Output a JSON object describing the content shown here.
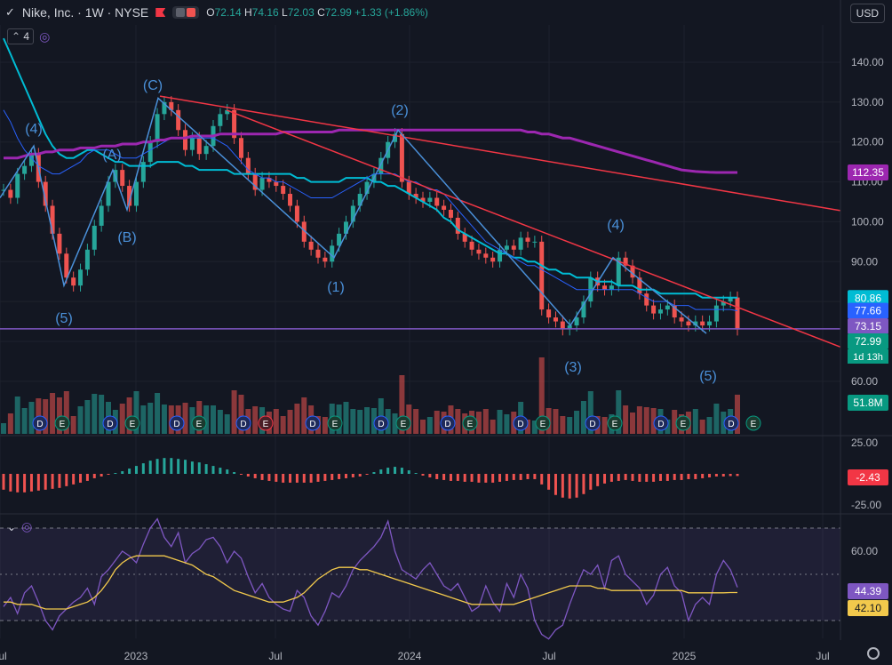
{
  "header": {
    "symbol": "Nike, Inc. · 1W · NYSE",
    "o_label": "O",
    "o": "72.14",
    "h_label": "H",
    "h": "74.16",
    "l_label": "L",
    "l": "72.03",
    "c_label": "C",
    "c": "72.99",
    "change": "+1.33 (+1.86%)",
    "currency": "USD",
    "indicator_count": "4"
  },
  "colors": {
    "up": "#26a69a",
    "down": "#ef5350",
    "ma_short": "#00bcd4",
    "ma_long": "#9c27b0",
    "ma_mid": "#2962ff",
    "trend": "#f23645",
    "wave": "#4a90d9",
    "horizontal": "#7e57c2",
    "rsi": "#7e57c2",
    "rsi_ma": "#f2c94c"
  },
  "chart_data": [
    {
      "type": "line",
      "title": "Nike, Inc. · 1W · NYSE",
      "price_axis_ticks": [
        "140.00",
        "130.00",
        "120.00",
        "110.00",
        "100.00",
        "90.00",
        "80.00",
        "70.00",
        "60.00"
      ],
      "time_axis_ticks": [
        "Jul",
        "2023",
        "Jul",
        "2024",
        "Jul",
        "2025",
        "Jul"
      ],
      "ylim": [
        55,
        150
      ],
      "series": [
        {
          "key": "price",
          "style": "candles",
          "values": [
            108,
            106,
            112,
            114,
            117,
            110,
            104,
            97,
            92,
            86,
            84,
            88,
            93,
            99,
            104,
            110,
            113,
            109,
            104,
            110,
            115,
            120,
            127,
            130,
            128,
            123,
            118,
            121,
            117,
            119,
            124,
            127,
            128,
            121,
            116,
            112,
            108,
            111,
            110,
            109,
            107,
            104,
            100,
            95,
            93,
            91,
            90,
            94,
            97,
            100,
            104,
            107,
            110,
            112,
            116,
            120,
            122,
            110,
            107,
            106,
            105,
            106,
            104,
            103,
            101,
            97,
            95,
            93,
            92,
            91,
            90,
            93,
            94,
            93,
            96,
            95,
            95,
            78,
            76,
            75,
            73,
            74,
            76,
            80,
            86,
            84,
            83,
            84,
            91,
            89,
            86,
            82,
            79,
            77,
            78,
            79,
            76,
            75,
            74,
            75,
            74,
            75,
            79,
            80,
            81,
            72.99
          ]
        },
        {
          "key": "ma_short",
          "values": [
            146,
            142,
            138,
            134,
            130,
            126,
            122,
            119,
            117,
            116,
            116,
            117,
            118,
            118,
            117,
            116,
            115,
            115,
            114,
            114,
            114,
            114,
            115,
            115,
            115,
            115,
            114,
            114,
            113,
            113,
            113,
            113,
            113,
            112,
            112,
            112,
            112,
            112,
            112,
            112,
            112,
            112,
            111,
            111,
            110,
            110,
            110,
            110,
            110,
            111,
            111,
            111,
            111,
            110,
            110,
            109,
            109,
            108,
            107,
            106,
            105,
            104,
            103,
            101,
            100,
            98,
            97,
            96,
            95,
            94,
            93,
            92,
            92,
            91,
            91,
            90,
            90,
            89,
            88,
            88,
            87,
            87,
            86,
            86,
            86,
            85,
            85,
            85,
            84,
            84,
            84,
            83,
            83,
            83,
            82,
            82,
            82,
            82,
            82,
            82,
            81,
            81,
            81,
            81,
            81,
            81
          ]
        },
        {
          "key": "ma_mid",
          "values": [
            128,
            125,
            121,
            118,
            116,
            114,
            113,
            112,
            112,
            113,
            114,
            115,
            117,
            118,
            118,
            118,
            117,
            116,
            116,
            116,
            117,
            118,
            119,
            120,
            121,
            121,
            121,
            121,
            121,
            121,
            121,
            120,
            119,
            117,
            115,
            113,
            112,
            111,
            111,
            110,
            110,
            109,
            108,
            107,
            106,
            106,
            106,
            106,
            107,
            108,
            109,
            110,
            111,
            112,
            112,
            112,
            112,
            111,
            110,
            110,
            109,
            108,
            108,
            107,
            105,
            103,
            101,
            99,
            97,
            95,
            94,
            93,
            92,
            91,
            90,
            89,
            89,
            88,
            87,
            86,
            85,
            84,
            83,
            83,
            83,
            83,
            83,
            83,
            83,
            83,
            83,
            82,
            81,
            80,
            80,
            80,
            79,
            79,
            79,
            78,
            78,
            78,
            78,
            78,
            78,
            77.66
          ]
        },
        {
          "key": "ma_long",
          "values": [
            116,
            116,
            116,
            116.5,
            117,
            117,
            117.5,
            117.5,
            118,
            118,
            118,
            118.5,
            118.5,
            118.5,
            119,
            119,
            119,
            119.5,
            119.5,
            119.5,
            120,
            120,
            120.5,
            120.5,
            121,
            121,
            121,
            121.5,
            121.5,
            121.5,
            121.5,
            122,
            122,
            122,
            122,
            122,
            122,
            122,
            122,
            122,
            122.5,
            122.5,
            122.5,
            122.5,
            122.5,
            122.5,
            122.5,
            122.5,
            123,
            123,
            123,
            123,
            123,
            123,
            123,
            123,
            123,
            123,
            123,
            123,
            123,
            123,
            123,
            123,
            123,
            123,
            123,
            123,
            123,
            123,
            123,
            123,
            123,
            123,
            123,
            122.5,
            122.5,
            122,
            122,
            121.5,
            121,
            121,
            120.5,
            120,
            119.5,
            119,
            118.5,
            118,
            117.5,
            117,
            116.5,
            116,
            115.5,
            115,
            114.5,
            114,
            113.5,
            113,
            112.8,
            112.6,
            112.5,
            112.4,
            112.35,
            112.35,
            112.35,
            112.35
          ]
        }
      ],
      "elliott_labels": [
        "(4)",
        "(A)",
        "(B)",
        "(5)",
        "(C)",
        "(1)",
        "(2)",
        "(3)",
        "(4)",
        "(5)"
      ],
      "price_labels": [
        {
          "text": "112.35",
          "value": 112.35,
          "color": "#9c27b0"
        },
        {
          "text": "80.86",
          "value": 80.86,
          "color": "#00bcd4"
        },
        {
          "text": "77.66",
          "value": 77.66,
          "color": "#2962ff"
        },
        {
          "text": "73.15",
          "value": 73.15,
          "color": "#7e57c2"
        },
        {
          "text": "72.99",
          "value": 72.99,
          "color": "#089981"
        }
      ],
      "countdown": "1d 13h",
      "volume_label": "51.8M",
      "earnings_markers": [
        "D",
        "E"
      ]
    },
    {
      "type": "bar",
      "title": "",
      "axis_ticks": [
        "25.00",
        "-25.00"
      ],
      "ylim": [
        -35,
        35
      ],
      "values": [
        -18,
        -20,
        -21,
        -21,
        -20,
        -19,
        -18,
        -17,
        -16,
        -14,
        -12,
        -10,
        -8,
        -5,
        -3,
        -1,
        1,
        3,
        6,
        9,
        12,
        15,
        17,
        18,
        18,
        17,
        16,
        14,
        13,
        11,
        9,
        7,
        5,
        2,
        -1,
        -3,
        -5,
        -7,
        -8,
        -9,
        -10,
        -10,
        -10,
        -10,
        -10,
        -9,
        -8,
        -7,
        -6,
        -5,
        -4,
        -3,
        -1,
        2,
        5,
        7,
        8,
        7,
        4,
        1,
        -2,
        -4,
        -6,
        -7,
        -8,
        -8,
        -9,
        -9,
        -10,
        -10,
        -10,
        -9,
        -8,
        -7,
        -7,
        -6,
        -6,
        -12,
        -18,
        -24,
        -27,
        -28,
        -27,
        -23,
        -18,
        -14,
        -11,
        -9,
        -8,
        -7,
        -8,
        -9,
        -9,
        -9,
        -8,
        -8,
        -7,
        -7,
        -6,
        -6,
        -5,
        -4,
        -3,
        -3,
        -2.5,
        -2.43
      ],
      "value_label": "-2.43"
    },
    {
      "type": "line",
      "title": "",
      "axis_ticks": [
        "60.00",
        "40.00"
      ],
      "ylim": [
        20,
        80
      ],
      "series": [
        {
          "key": "rsi",
          "values": [
            36,
            40,
            33,
            42,
            45,
            38,
            30,
            26,
            32,
            35,
            38,
            40,
            44,
            37,
            49,
            52,
            56,
            60,
            58,
            55,
            63,
            70,
            74,
            66,
            62,
            68,
            55,
            59,
            61,
            65,
            66,
            62,
            55,
            60,
            57,
            49,
            42,
            46,
            40,
            37,
            35,
            34,
            43,
            40,
            32,
            28,
            34,
            42,
            40,
            45,
            52,
            56,
            59,
            62,
            66,
            73,
            60,
            52,
            50,
            48,
            52,
            55,
            50,
            45,
            43,
            46,
            40,
            34,
            36,
            45,
            38,
            34,
            46,
            40,
            50,
            44,
            30,
            24,
            22,
            26,
            28,
            37,
            45,
            52,
            50,
            54,
            44,
            56,
            58,
            50,
            47,
            44,
            37,
            41,
            50,
            53,
            45,
            42,
            30,
            37,
            40,
            37,
            50,
            56,
            52,
            44.39
          ]
        },
        {
          "key": "rsi_ma",
          "values": [
            38,
            38,
            37,
            37,
            37,
            36,
            35,
            35,
            35,
            35,
            36,
            37,
            38,
            40,
            43,
            47,
            52,
            55,
            57,
            58,
            58,
            58,
            58,
            58,
            57,
            56,
            55,
            54,
            52,
            50,
            49,
            47,
            45,
            43,
            42,
            41,
            40,
            39,
            38,
            38,
            38,
            39,
            40,
            42,
            45,
            48,
            50,
            52,
            53,
            53,
            53,
            52,
            52,
            51,
            50,
            49,
            48,
            47,
            46,
            45,
            44,
            43,
            42,
            41,
            40,
            39,
            38,
            37,
            37,
            37,
            37,
            37,
            37,
            37,
            38,
            39,
            40,
            41,
            42,
            43,
            44,
            45,
            45,
            45,
            45,
            44,
            44,
            43,
            43,
            43,
            43,
            43,
            43,
            43,
            43,
            43,
            43,
            43,
            42,
            42,
            42,
            42,
            42,
            42,
            42.1,
            42.1
          ]
        }
      ],
      "value_labels": [
        "44.39",
        "42.10"
      ]
    }
  ]
}
